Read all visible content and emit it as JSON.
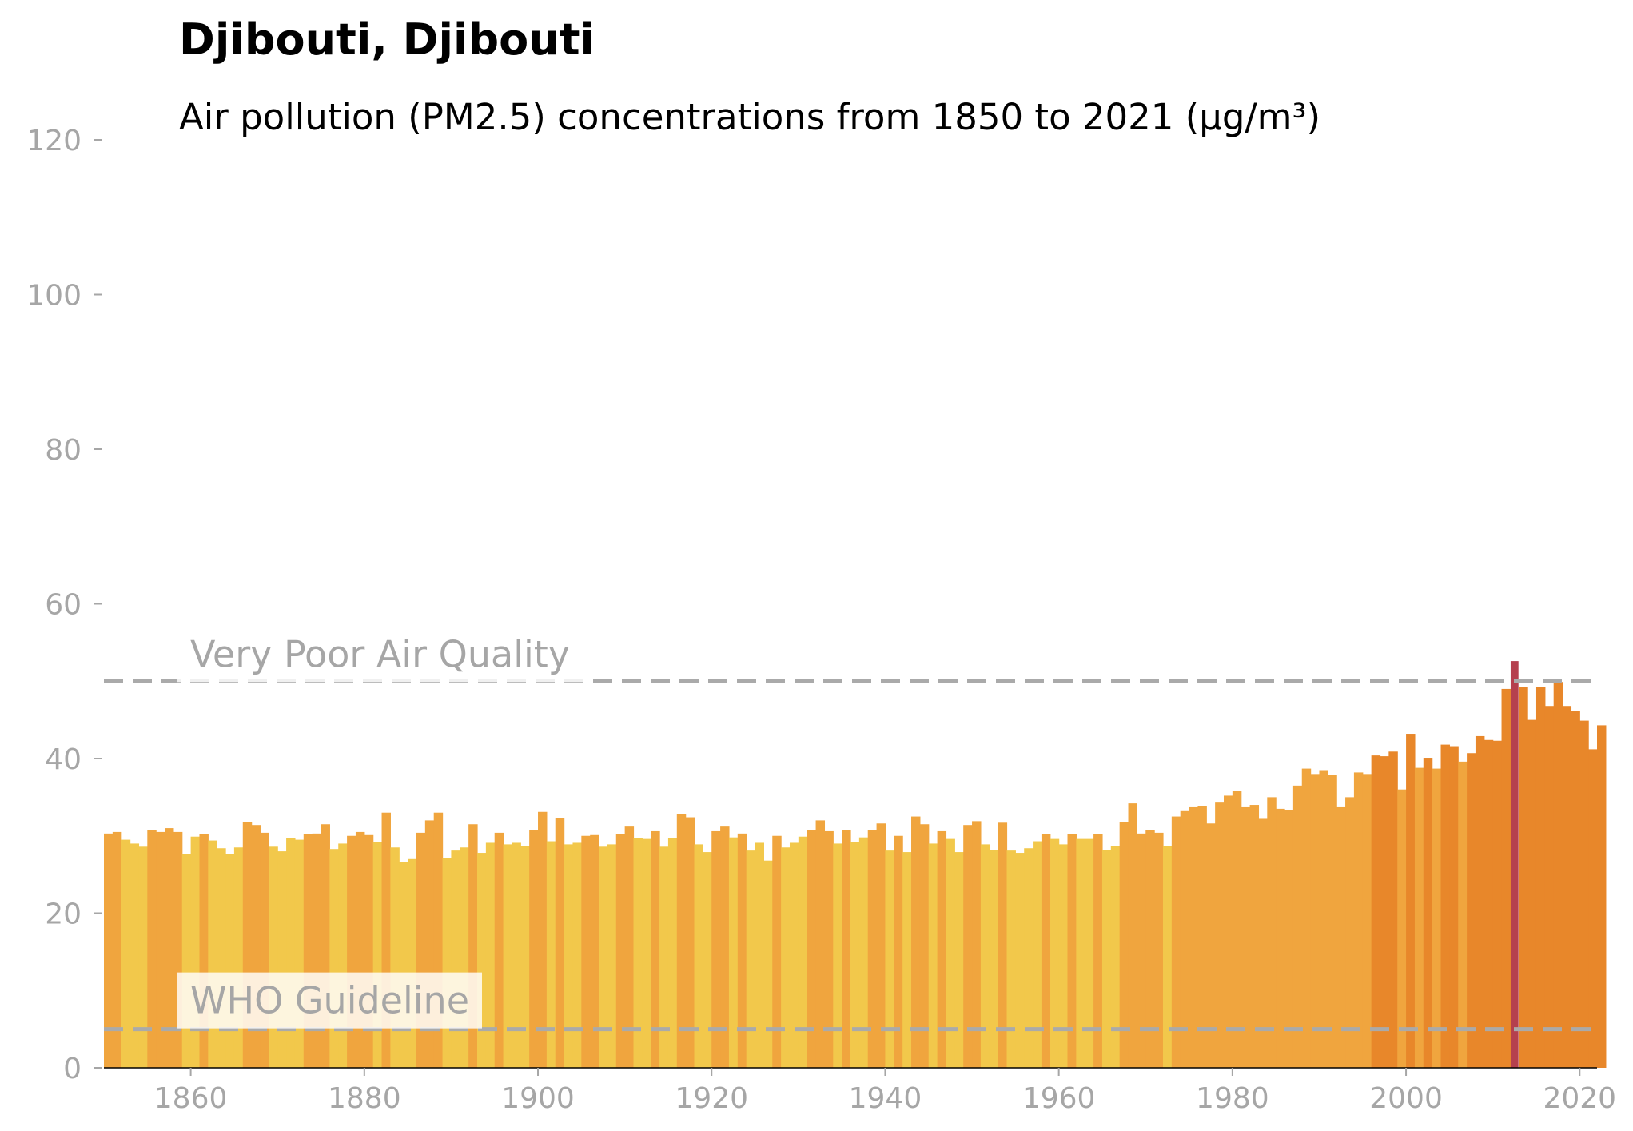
{
  "title": "Djibouti, Djibouti",
  "subtitle": "Air pollution (PM2.5) concentrations from 1850 to 2021 (µg/m³)",
  "chart_data": {
    "type": "bar",
    "title": "Djibouti, Djibouti",
    "subtitle": "Air pollution (PM2.5) concentrations from 1850 to 2021 (µg/m³)",
    "xlabel": "",
    "ylabel": "",
    "xlim": [
      1850,
      2022
    ],
    "ylim": [
      0,
      120
    ],
    "xticks": [
      1860,
      1880,
      1900,
      1920,
      1940,
      1960,
      1980,
      2000,
      2020
    ],
    "yticks": [
      0,
      20,
      40,
      60,
      80,
      100,
      120
    ],
    "grid": false,
    "start_year": 1850,
    "values": [
      30.3,
      30.5,
      29.5,
      29.0,
      28.6,
      30.8,
      30.5,
      31.0,
      30.5,
      27.7,
      29.9,
      30.2,
      29.4,
      28.4,
      27.7,
      28.5,
      31.8,
      31.4,
      30.4,
      28.6,
      28.0,
      29.7,
      29.5,
      30.2,
      30.3,
      31.5,
      28.3,
      29.0,
      30.0,
      30.5,
      30.1,
      29.2,
      33.0,
      28.5,
      26.6,
      27.0,
      30.4,
      32.0,
      33.0,
      27.1,
      28.1,
      28.5,
      31.5,
      27.8,
      29.1,
      30.4,
      28.9,
      29.1,
      28.7,
      30.8,
      33.1,
      29.3,
      32.3,
      28.9,
      29.1,
      30.0,
      30.1,
      28.6,
      28.9,
      30.2,
      31.2,
      29.7,
      29.6,
      30.6,
      28.6,
      29.7,
      32.8,
      32.4,
      28.9,
      27.9,
      30.6,
      31.2,
      29.8,
      30.3,
      28.1,
      29.1,
      26.8,
      30.0,
      28.5,
      29.1,
      29.9,
      30.8,
      32.0,
      30.6,
      29.0,
      30.7,
      29.2,
      29.8,
      30.8,
      31.6,
      28.1,
      30.0,
      27.9,
      32.5,
      31.5,
      29.0,
      30.6,
      29.6,
      27.9,
      31.4,
      31.9,
      28.9,
      28.2,
      31.7,
      28.1,
      27.8,
      28.4,
      29.3,
      30.2,
      29.6,
      28.9,
      30.2,
      29.6,
      29.6,
      30.2,
      28.2,
      28.7,
      31.8,
      34.2,
      30.3,
      30.8,
      30.4,
      28.7,
      32.5,
      33.2,
      33.7,
      33.8,
      31.6,
      34.3,
      35.2,
      35.8,
      33.7,
      34.0,
      32.2,
      35.0,
      33.5,
      33.3,
      36.5,
      38.7,
      38.0,
      38.5,
      37.9,
      33.7,
      35.0,
      38.2,
      38.0,
      40.4,
      40.3,
      40.9,
      36.0,
      43.2,
      38.8,
      40.1,
      38.7,
      41.8,
      41.6,
      39.6,
      40.7,
      42.9,
      42.4,
      42.3,
      49.0,
      52.6,
      49.2,
      45.0,
      49.2,
      46.8,
      49.9,
      46.8,
      46.2,
      44.9,
      41.2,
      44.3
    ],
    "highlight_year": 2012,
    "color_thresholds": [
      {
        "min": 0,
        "max": 30,
        "color": "#f2c84b"
      },
      {
        "min": 30,
        "max": 40,
        "color": "#f0a53e"
      },
      {
        "min": 40,
        "max": 50,
        "color": "#e8872a"
      },
      {
        "min": 50,
        "max": 1000,
        "color": "#b5404e"
      }
    ],
    "reference_lines": [
      {
        "label": "Very Poor Air Quality",
        "value": 50,
        "color": "#aaaaaa"
      },
      {
        "label": "WHO Guideline",
        "value": 5,
        "color": "#aaaaaa"
      }
    ]
  }
}
